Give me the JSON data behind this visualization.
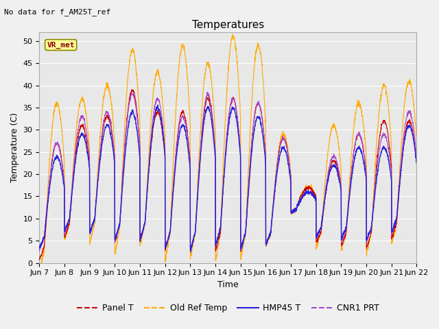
{
  "title": "Temperatures",
  "xlabel": "Time",
  "ylabel": "Temperature (C)",
  "no_data_label": "No data for f_AM25T_ref",
  "vr_met_label": "VR_met",
  "ylim": [
    0,
    52
  ],
  "yticks": [
    0,
    5,
    10,
    15,
    20,
    25,
    30,
    35,
    40,
    45,
    50
  ],
  "x_tick_labels": [
    "Jun 7",
    "Jun 8",
    "Jun 9",
    "Jun 10",
    "Jun 11",
    "Jun 12",
    "Jun 13",
    "Jun 14",
    "Jun 15",
    "Jun 16",
    "Jun 17",
    "Jun 18",
    "Jun 19",
    "Jun 20",
    "Jun 21",
    "Jun 22"
  ],
  "panel_color": "#cc0000",
  "ref_color": "#ffaa00",
  "hmp_color": "#2222dd",
  "cnr_color": "#aa44cc",
  "background_color": "#e8e8e8",
  "fig_background": "#f0f0f0",
  "title_fontsize": 11,
  "axis_label_fontsize": 9,
  "tick_fontsize": 8,
  "legend_fontsize": 9,
  "no_data_fontsize": 8,
  "vr_met_fontsize": 8,
  "n_days": 15,
  "pts_per_day": 144,
  "panel_base": [
    4,
    9,
    10,
    9,
    9,
    7,
    7,
    7,
    7,
    7,
    12,
    7,
    7,
    7,
    9
  ],
  "panel_amp": [
    23,
    22,
    23,
    30,
    25,
    27,
    30,
    30,
    29,
    21,
    5,
    16,
    22,
    25,
    23
  ],
  "ref_base": [
    3,
    9,
    9,
    8,
    9,
    7,
    7,
    7,
    7,
    7,
    12,
    7,
    7,
    7,
    9
  ],
  "ref_amp": [
    33,
    28,
    31,
    40,
    34,
    42,
    38,
    44,
    42,
    22,
    5,
    24,
    29,
    33,
    32
  ],
  "hmp_base": [
    6,
    10,
    10,
    9,
    9,
    7,
    7,
    8,
    7,
    7,
    12,
    8,
    8,
    8,
    10
  ],
  "hmp_amp": [
    18,
    19,
    21,
    25,
    26,
    24,
    28,
    27,
    26,
    19,
    4,
    14,
    18,
    18,
    21
  ],
  "cnr_base": [
    6,
    10,
    10,
    9,
    9,
    7,
    7,
    8,
    7,
    7,
    12,
    8,
    8,
    8,
    10
  ],
  "cnr_amp": [
    21,
    23,
    24,
    29,
    28,
    26,
    31,
    29,
    29,
    21,
    4,
    16,
    21,
    21,
    24
  ]
}
